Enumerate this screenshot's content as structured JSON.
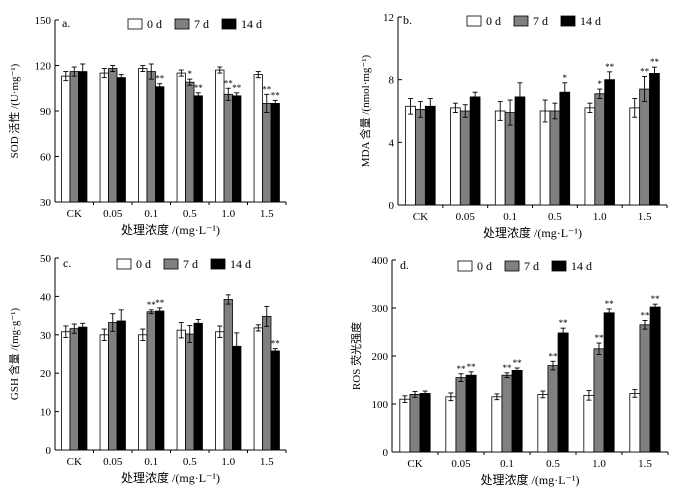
{
  "legend_labels": [
    "0 d",
    "7 d",
    "14 d"
  ],
  "colors": {
    "d0": "#ffffff",
    "d7": "#808080",
    "d14": "#000000",
    "stroke": "#000000"
  },
  "chart_data": [
    {
      "type": "bar",
      "panel": "a.",
      "ylabel": "SOD 活性 /(U·mg⁻¹)",
      "xlabel": "处理浓度 /(mg·L⁻¹)",
      "categories": [
        "CK",
        "0.05",
        "0.1",
        "0.5",
        "1.0",
        "1.5"
      ],
      "ylim": [
        30,
        150
      ],
      "yticks": [
        30,
        60,
        90,
        120,
        150
      ],
      "legend_position": "top-center",
      "series": [
        {
          "name": "0 d",
          "values": [
            113,
            115,
            118,
            115,
            117,
            114
          ],
          "errors": [
            3,
            3,
            2,
            2,
            2,
            2
          ],
          "marks": [
            "",
            "",
            "",
            "",
            "",
            ""
          ]
        },
        {
          "name": "7 d",
          "values": [
            116,
            118,
            116,
            109,
            101,
            95
          ],
          "errors": [
            3,
            2,
            5,
            2,
            4,
            6
          ],
          "marks": [
            "",
            "",
            "",
            "*",
            "**",
            "**"
          ]
        },
        {
          "name": "14 d",
          "values": [
            116,
            112,
            106,
            100,
            100,
            95
          ],
          "errors": [
            5,
            2,
            2,
            2,
            2,
            2
          ],
          "marks": [
            "",
            "",
            "**",
            "**",
            "**",
            "**"
          ]
        }
      ]
    },
    {
      "type": "bar",
      "panel": "b.",
      "ylabel": "MDA 含量 /(nmol·mg⁻¹)",
      "xlabel": "处理浓度 /(mg·L⁻¹)",
      "categories": [
        "CK",
        "0.05",
        "0.1",
        "0.5",
        "1.0",
        "1.5"
      ],
      "ylim": [
        0,
        12
      ],
      "yticks": [
        0,
        4,
        8,
        12
      ],
      "legend_position": "top-right",
      "series": [
        {
          "name": "0 d",
          "values": [
            6.3,
            6.2,
            6.0,
            6.0,
            6.2,
            6.2
          ],
          "errors": [
            0.5,
            0.3,
            0.6,
            0.7,
            0.3,
            0.6
          ],
          "marks": [
            "",
            "",
            "",
            "",
            "",
            ""
          ]
        },
        {
          "name": "7 d",
          "values": [
            6.1,
            6.0,
            5.9,
            6.0,
            7.1,
            7.4
          ],
          "errors": [
            0.5,
            0.4,
            0.8,
            0.5,
            0.3,
            0.8
          ],
          "marks": [
            "",
            "",
            "",
            "",
            "*",
            "**"
          ]
        },
        {
          "name": "14 d",
          "values": [
            6.3,
            6.9,
            6.9,
            7.2,
            8.0,
            8.4
          ],
          "errors": [
            0.5,
            0.3,
            0.9,
            0.6,
            0.5,
            0.4
          ],
          "marks": [
            "",
            "",
            "",
            "*",
            "**",
            "**"
          ]
        }
      ]
    },
    {
      "type": "bar",
      "panel": "c.",
      "ylabel": "GSH 含量 /(mg·g⁻¹)",
      "xlabel": "处理浓度 /(mg·L⁻¹)",
      "categories": [
        "CK",
        "0.05",
        "0.1",
        "0.5",
        "1.0",
        "1.5"
      ],
      "ylim": [
        0,
        50
      ],
      "yticks": [
        0,
        10,
        20,
        30,
        40,
        50
      ],
      "legend_position": "top-center",
      "series": [
        {
          "name": "0 d",
          "values": [
            30.8,
            30.0,
            30.0,
            31.2,
            30.8,
            31.8
          ],
          "errors": [
            1.5,
            1.5,
            1.5,
            2.0,
            1.5,
            0.8
          ],
          "marks": [
            "",
            "",
            "",
            "",
            "",
            ""
          ]
        },
        {
          "name": "7 d",
          "values": [
            31.6,
            33.2,
            36.0,
            30.2,
            39.2,
            34.8
          ],
          "errors": [
            1.2,
            2.3,
            0.5,
            2.2,
            1.2,
            2.6
          ],
          "marks": [
            "",
            "",
            "**",
            "",
            "",
            ""
          ]
        },
        {
          "name": "14 d",
          "values": [
            32.0,
            33.6,
            36.2,
            33.0,
            27.0,
            25.8
          ],
          "errors": [
            1.0,
            2.9,
            0.8,
            1.0,
            3.5,
            0.6
          ],
          "marks": [
            "",
            "",
            "**",
            "",
            "",
            "**"
          ]
        }
      ]
    },
    {
      "type": "bar",
      "panel": "d.",
      "ylabel": "ROS 荧光强度",
      "xlabel": "处理浓度 /(mg·L⁻¹)",
      "categories": [
        "CK",
        "0.05",
        "0.1",
        "0.5",
        "1.0",
        "1.5"
      ],
      "ylim": [
        0,
        400
      ],
      "yticks": [
        0,
        100,
        200,
        300,
        400
      ],
      "legend_position": "top-center",
      "series": [
        {
          "name": "0 d",
          "values": [
            110,
            115,
            115,
            120,
            118,
            122
          ],
          "errors": [
            7,
            8,
            6,
            7,
            10,
            8
          ],
          "marks": [
            "",
            "",
            "",
            "",
            "",
            ""
          ]
        },
        {
          "name": "7 d",
          "values": [
            120,
            155,
            160,
            180,
            215,
            265
          ],
          "errors": [
            6,
            8,
            5,
            9,
            12,
            9
          ],
          "marks": [
            "",
            "**",
            "**",
            "**",
            "**",
            "**"
          ]
        },
        {
          "name": "14 d",
          "values": [
            122,
            160,
            170,
            248,
            290,
            302
          ],
          "errors": [
            5,
            7,
            5,
            10,
            8,
            6
          ],
          "marks": [
            "",
            "**",
            "**",
            "**",
            "**",
            "**"
          ]
        }
      ]
    }
  ]
}
